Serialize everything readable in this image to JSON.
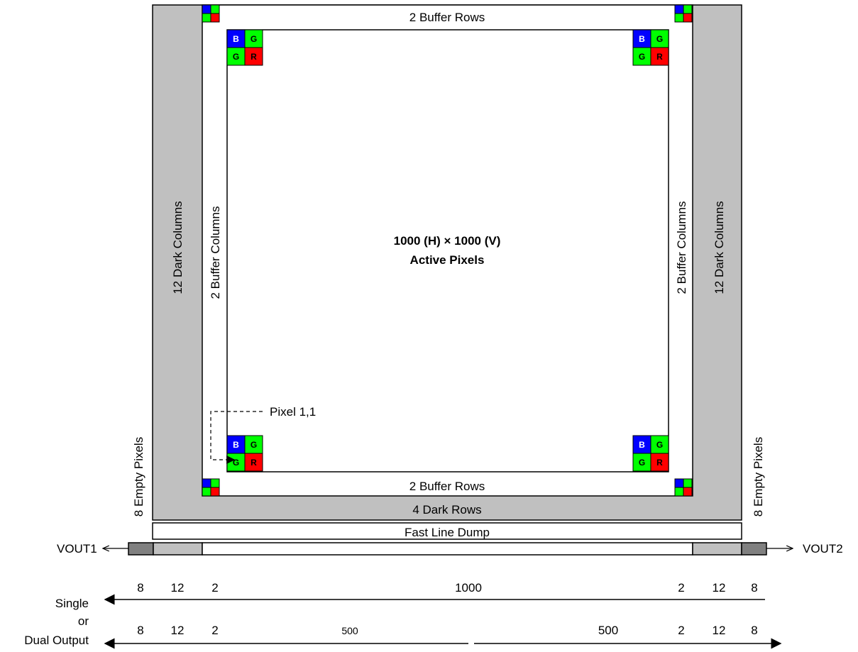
{
  "colors": {
    "dark_region": "#c0c0c0",
    "empty_pixel": "#808080",
    "pixel_blue": "#0000ff",
    "pixel_green": "#00ff00",
    "pixel_red": "#ff0000",
    "active": "#ffffff",
    "line": "#000000"
  },
  "labels": {
    "buffer_rows_top": "2 Buffer Rows",
    "buffer_rows_bottom": "2 Buffer Rows",
    "dark_columns_left": "12 Dark Columns",
    "dark_columns_right": "12 Dark Columns",
    "buffer_columns_left": "2 Buffer Columns",
    "buffer_columns_right": "2 Buffer Columns",
    "active_line1": "1000 (H) × 1000 (V)",
    "active_line2": "Active Pixels",
    "pixel_origin": "Pixel 1,1",
    "empty_pixels_left": "8 Empty Pixels",
    "empty_pixels_right": "8 Empty Pixels",
    "dark_rows": "4 Dark Rows",
    "fast_line_dump": "Fast Line Dump",
    "vout1": "VOUT1",
    "vout2": "VOUT2",
    "single": "Single",
    "or": "or",
    "dual_output": "Dual Output"
  },
  "pixel_letters": {
    "b": "B",
    "g": "G",
    "r": "R"
  },
  "single_counts": [
    "8",
    "12",
    "2",
    "1000",
    "2",
    "12",
    "8"
  ],
  "dual_counts": [
    "8",
    "12",
    "2",
    "500",
    "500",
    "2",
    "12",
    "8"
  ]
}
